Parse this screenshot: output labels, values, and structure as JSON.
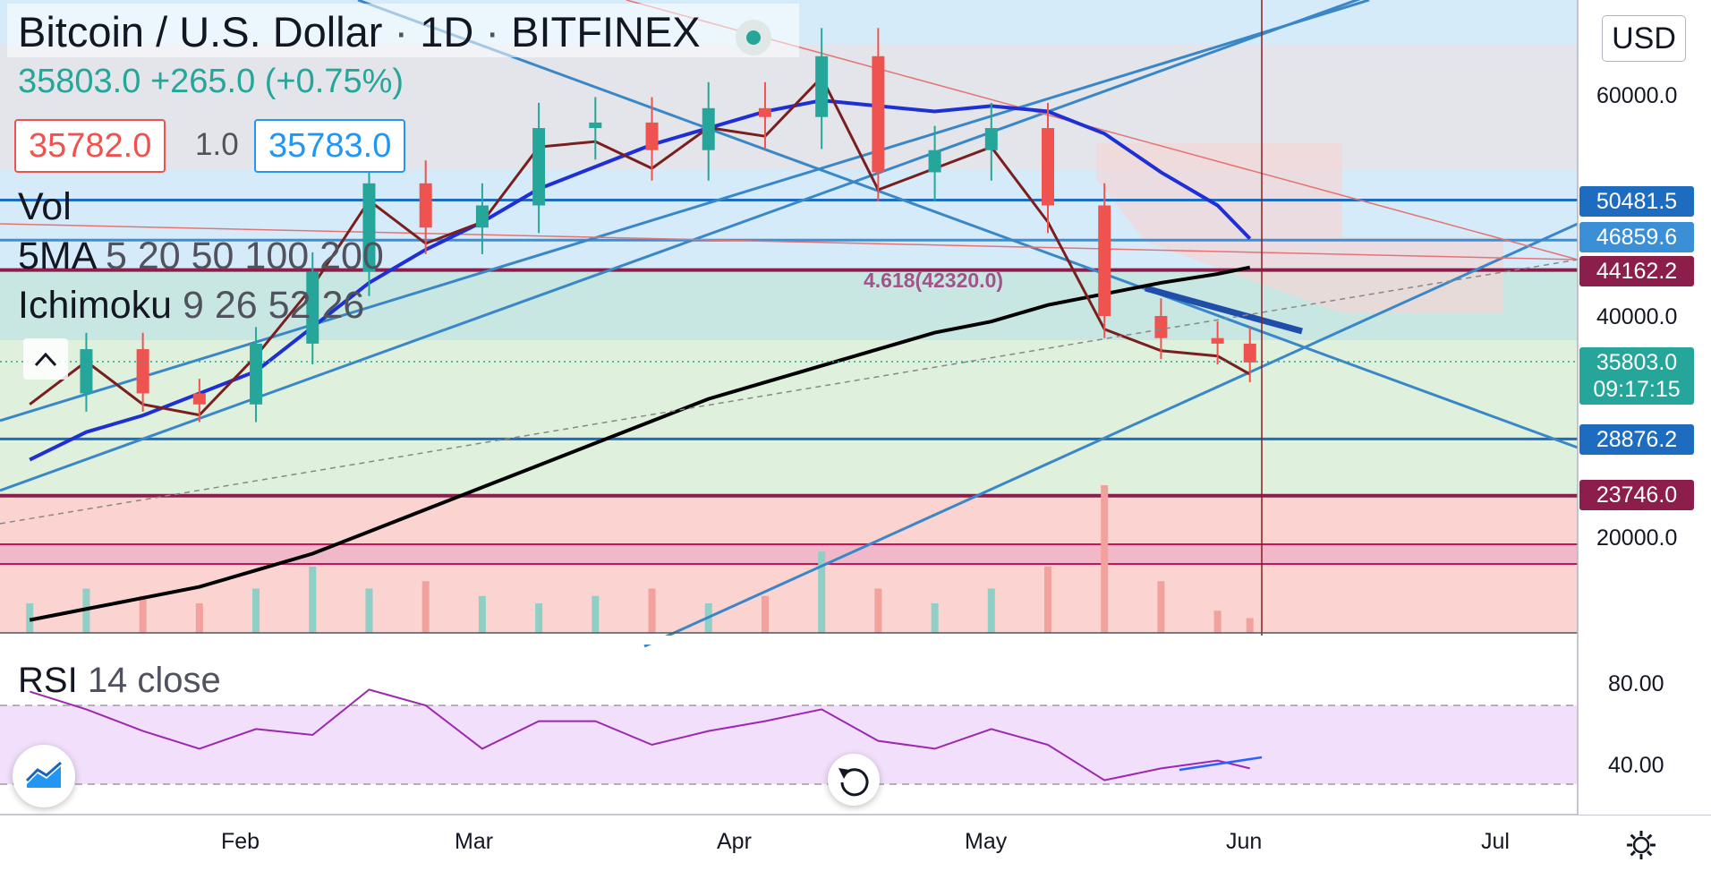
{
  "header": {
    "symbol": "Bitcoin / U.S. Dollar",
    "interval": "1D",
    "exchange": "BITFINEX",
    "last": "35803.0",
    "change": "+265.0 (+0.75%)",
    "sell_price": "35782.0",
    "spread": "1.0",
    "buy_price": "35783.0"
  },
  "indicators": {
    "vol": "Vol",
    "ma_name": "5MA",
    "ma_params": "5 20 50 100 200",
    "ichimoku_name": "Ichimoku",
    "ichimoku_params": "9 26 52 26",
    "rsi_name": "RSI",
    "rsi_params": "14 close"
  },
  "currency_button": "USD",
  "fib_label": "4.618(42320.0)",
  "price_axis": {
    "ticks": [
      "60000.0",
      "40000.0",
      "20000.0"
    ],
    "tags": [
      {
        "text": "50481.5",
        "color": "#1e6cbf"
      },
      {
        "text": "46859.6",
        "color": "#3a8fd6"
      },
      {
        "text": "44162.2",
        "color": "#8b1e4a"
      },
      {
        "text": "35803.0",
        "color": "#26a69a"
      },
      {
        "text": "09:17:15",
        "color": "#26a69a"
      },
      {
        "text": "28876.2",
        "color": "#1e6cbf"
      },
      {
        "text": "23746.0",
        "color": "#8b1e4a"
      }
    ]
  },
  "rsi_axis": {
    "ticks": [
      "80.00",
      "40.00"
    ]
  },
  "time_axis": [
    "Feb",
    "Mar",
    "Apr",
    "May",
    "Jun",
    "Jul"
  ],
  "colors": {
    "up": "#26a69a",
    "down": "#ef5350",
    "ma20": "#1e2fd6",
    "ma200": "#000000",
    "ma100": "#ff9800",
    "trend": "#3a87c8",
    "rsi": "#9c27b0"
  },
  "chart_data": {
    "type": "candlestick",
    "title": "Bitcoin / U.S. Dollar · 1D · BITFINEX",
    "x": [
      "2021-01-06",
      "2021-01-13",
      "2021-01-20",
      "2021-01-27",
      "2021-02-03",
      "2021-02-10",
      "2021-02-17",
      "2021-02-24",
      "2021-03-03",
      "2021-03-10",
      "2021-03-17",
      "2021-03-24",
      "2021-03-31",
      "2021-04-07",
      "2021-04-14",
      "2021-04-21",
      "2021-04-28",
      "2021-05-05",
      "2021-05-12",
      "2021-05-19",
      "2021-05-26",
      "2021-06-02",
      "2021-06-06"
    ],
    "series": [
      {
        "name": "close",
        "values": [
          33000,
          37000,
          33000,
          32000,
          37500,
          44000,
          52000,
          48000,
          50000,
          57000,
          57500,
          55000,
          58800,
          58000,
          63500,
          53000,
          55000,
          57000,
          50000,
          40000,
          38000,
          37500,
          35803
        ]
      },
      {
        "name": "MA 200",
        "values": [
          12500,
          13500,
          14500,
          15500,
          17000,
          18500,
          20500,
          22500,
          24500,
          26500,
          28500,
          30500,
          32500,
          34000,
          35500,
          37000,
          38500,
          39500,
          41000,
          42000,
          43000,
          43800,
          44400
        ]
      },
      {
        "name": "MA 20",
        "values": [
          27000,
          29500,
          31000,
          33000,
          35000,
          39000,
          43000,
          46000,
          48500,
          51500,
          53500,
          55500,
          57000,
          58500,
          59500,
          59000,
          58500,
          59000,
          58500,
          56500,
          53000,
          50000,
          47000
        ]
      }
    ],
    "ylim": [
      0,
      70000
    ],
    "horizontal_levels": [
      50481.5,
      46859.6,
      44162.2,
      28876.2,
      23746.0
    ],
    "volume_relative": [
      0.2,
      0.3,
      0.25,
      0.2,
      0.3,
      0.45,
      0.3,
      0.35,
      0.25,
      0.2,
      0.25,
      0.3,
      0.2,
      0.25,
      0.55,
      0.3,
      0.2,
      0.3,
      0.45,
      1.0,
      0.35,
      0.15,
      0.1
    ],
    "rsi": {
      "name": "RSI 14 close",
      "ylim": [
        15,
        100
      ],
      "bands": [
        70,
        30
      ],
      "values": [
        77,
        68,
        57,
        48,
        58,
        55,
        78,
        70,
        48,
        62,
        62,
        50,
        57,
        62,
        68,
        52,
        48,
        58,
        50,
        32,
        38,
        42,
        38
      ]
    }
  }
}
